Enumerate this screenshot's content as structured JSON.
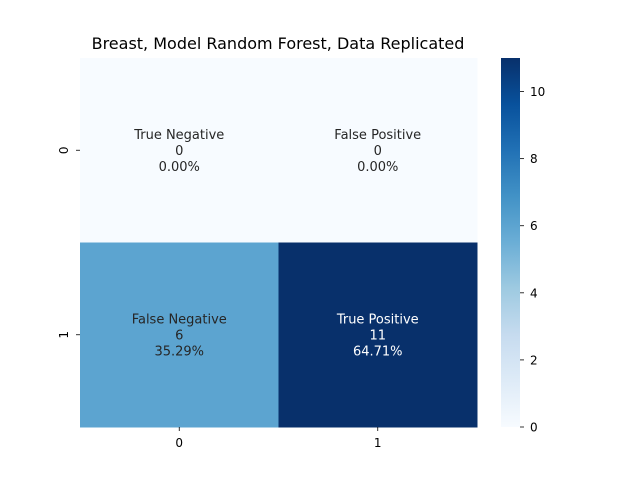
{
  "chart_data": {
    "type": "heatmap",
    "title": "Breast, Model Random Forest, Data Replicated",
    "xlabel": "",
    "ylabel": "",
    "x_categories": [
      "0",
      "1"
    ],
    "y_categories": [
      "0",
      "1"
    ],
    "values": [
      [
        0,
        0
      ],
      [
        6,
        11
      ]
    ],
    "cell_labels": [
      [
        {
          "name": "True Negative",
          "count": "0",
          "percent": "0.00%"
        },
        {
          "name": "False Positive",
          "count": "0",
          "percent": "0.00%"
        }
      ],
      [
        {
          "name": "False Negative",
          "count": "6",
          "percent": "35.29%"
        },
        {
          "name": "True Positive",
          "count": "11",
          "percent": "64.71%"
        }
      ]
    ],
    "colorscale": "Blues",
    "colorbar": {
      "range": [
        0,
        11
      ],
      "ticks": [
        "0",
        "2",
        "4",
        "6",
        "8",
        "10"
      ]
    }
  }
}
